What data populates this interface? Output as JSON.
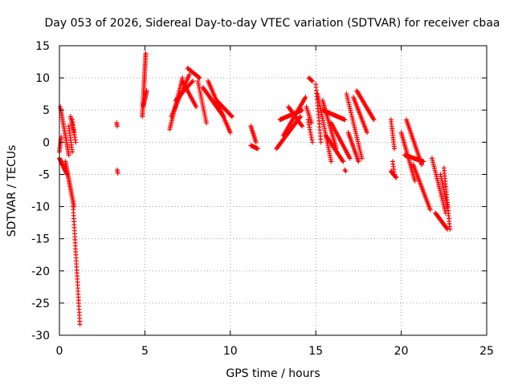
{
  "chart_data": {
    "type": "scatter",
    "title": "Day 053 of 2026, Sidereal Day-to-day VTEC variation (SDTVAR) for receiver cbaa",
    "xlabel": "GPS time / hours",
    "ylabel": "SDTVAR / TECUs",
    "xlim": [
      0,
      25
    ],
    "ylim": [
      -30,
      15
    ],
    "xticks": [
      0,
      5,
      10,
      15,
      20,
      25
    ],
    "yticks": [
      15,
      10,
      5,
      0,
      -5,
      -10,
      -15,
      -20,
      -25,
      -30
    ],
    "grid": true,
    "marker": "+",
    "series": [
      {
        "name": "SDTVAR",
        "color": "#ff0000",
        "segments": [
          {
            "x0": 0.0,
            "y0": -1.5,
            "x1": 0.1,
            "y1": 0.8,
            "n": 10
          },
          {
            "x0": 0.05,
            "y0": 5.5,
            "x1": 0.55,
            "y1": -2.0,
            "n": 28
          },
          {
            "x0": 0.0,
            "y0": -2.5,
            "x1": 0.45,
            "y1": -5.0,
            "n": 18
          },
          {
            "x0": 0.35,
            "y0": -3.0,
            "x1": 0.85,
            "y1": -10.0,
            "n": 30
          },
          {
            "x0": 0.55,
            "y0": 2.5,
            "x1": 0.75,
            "y1": -1.5,
            "n": 12
          },
          {
            "x0": 0.65,
            "y0": 4.0,
            "x1": 0.85,
            "y1": 1.5,
            "n": 10
          },
          {
            "x0": 0.75,
            "y0": 3.5,
            "x1": 0.95,
            "y1": 0.0,
            "n": 10
          },
          {
            "x0": 0.8,
            "y0": -10.0,
            "x1": 1.2,
            "y1": -28.3,
            "n": 40
          },
          {
            "x0": 3.35,
            "y0": 3.0,
            "x1": 3.38,
            "y1": 2.5,
            "n": 3
          },
          {
            "x0": 3.38,
            "y0": -4.3,
            "x1": 3.42,
            "y1": -4.8,
            "n": 3
          },
          {
            "x0": 4.85,
            "y0": 4.0,
            "x1": 5.05,
            "y1": 13.8,
            "n": 40
          },
          {
            "x0": 4.9,
            "y0": 5.5,
            "x1": 5.1,
            "y1": 8.0,
            "n": 14
          },
          {
            "x0": 6.45,
            "y0": 2.0,
            "x1": 7.2,
            "y1": 10.0,
            "n": 30
          },
          {
            "x0": 6.55,
            "y0": 4.0,
            "x1": 7.6,
            "y1": 10.5,
            "n": 28
          },
          {
            "x0": 6.8,
            "y0": 6.5,
            "x1": 7.8,
            "y1": 9.5,
            "n": 20
          },
          {
            "x0": 7.5,
            "y0": 11.5,
            "x1": 8.2,
            "y1": 10.0,
            "n": 16
          },
          {
            "x0": 7.2,
            "y0": 9.5,
            "x1": 8.0,
            "y1": 5.5,
            "n": 20
          },
          {
            "x0": 8.1,
            "y0": 9.5,
            "x1": 8.6,
            "y1": 3.0,
            "n": 22
          },
          {
            "x0": 8.4,
            "y0": 8.5,
            "x1": 9.6,
            "y1": 4.0,
            "n": 32
          },
          {
            "x0": 8.7,
            "y0": 9.5,
            "x1": 10.0,
            "y1": 1.5,
            "n": 36
          },
          {
            "x0": 9.2,
            "y0": 6.5,
            "x1": 10.1,
            "y1": 4.0,
            "n": 24
          },
          {
            "x0": 11.2,
            "y0": 2.5,
            "x1": 11.5,
            "y1": 0.0,
            "n": 12
          },
          {
            "x0": 11.2,
            "y0": -0.5,
            "x1": 11.6,
            "y1": -1.0,
            "n": 10
          },
          {
            "x0": 12.7,
            "y0": -1.0,
            "x1": 14.1,
            "y1": 4.0,
            "n": 36
          },
          {
            "x0": 12.9,
            "y0": 3.5,
            "x1": 14.2,
            "y1": 5.0,
            "n": 30
          },
          {
            "x0": 13.1,
            "y0": 1.0,
            "x1": 14.4,
            "y1": 7.0,
            "n": 32
          },
          {
            "x0": 13.4,
            "y0": 5.5,
            "x1": 14.2,
            "y1": 2.5,
            "n": 20
          },
          {
            "x0": 14.6,
            "y0": 10.0,
            "x1": 14.8,
            "y1": 9.5,
            "n": 5
          },
          {
            "x0": 14.45,
            "y0": 5.5,
            "x1": 14.75,
            "y1": 3.0,
            "n": 10
          },
          {
            "x0": 14.55,
            "y0": 3.5,
            "x1": 14.8,
            "y1": 0.0,
            "n": 10
          },
          {
            "x0": 15.0,
            "y0": 9.0,
            "x1": 15.3,
            "y1": 0.0,
            "n": 20
          },
          {
            "x0": 15.1,
            "y0": 7.5,
            "x1": 15.9,
            "y1": -3.0,
            "n": 34
          },
          {
            "x0": 15.4,
            "y0": 6.5,
            "x1": 16.2,
            "y1": -1.0,
            "n": 30
          },
          {
            "x0": 15.4,
            "y0": 5.0,
            "x1": 16.7,
            "y1": 3.5,
            "n": 30
          },
          {
            "x0": 15.6,
            "y0": 1.0,
            "x1": 16.6,
            "y1": -3.0,
            "n": 26
          },
          {
            "x0": 15.9,
            "y0": 3.0,
            "x1": 17.0,
            "y1": -2.5,
            "n": 28
          },
          {
            "x0": 16.8,
            "y0": 7.5,
            "x1": 17.7,
            "y1": -2.5,
            "n": 32
          },
          {
            "x0": 16.7,
            "y0": -4.3,
            "x1": 16.75,
            "y1": -4.5,
            "n": 2
          },
          {
            "x0": 16.9,
            "y0": 1.5,
            "x1": 17.5,
            "y1": -3.0,
            "n": 20
          },
          {
            "x0": 17.2,
            "y0": 7.0,
            "x1": 18.0,
            "y1": 1.5,
            "n": 24
          },
          {
            "x0": 17.4,
            "y0": 8.0,
            "x1": 18.4,
            "y1": 3.5,
            "n": 26
          },
          {
            "x0": 19.4,
            "y0": 3.5,
            "x1": 19.6,
            "y1": -1.0,
            "n": 14
          },
          {
            "x0": 19.4,
            "y0": -4.5,
            "x1": 19.7,
            "y1": -5.5,
            "n": 10
          },
          {
            "x0": 19.5,
            "y0": -3.0,
            "x1": 19.6,
            "y1": -5.0,
            "n": 6
          },
          {
            "x0": 20.0,
            "y0": 1.5,
            "x1": 20.8,
            "y1": -6.0,
            "n": 30
          },
          {
            "x0": 20.3,
            "y0": 3.5,
            "x1": 21.2,
            "y1": -3.5,
            "n": 30
          },
          {
            "x0": 20.7,
            "y0": -3.5,
            "x1": 21.7,
            "y1": -10.5,
            "n": 30
          },
          {
            "x0": 20.2,
            "y0": -2.0,
            "x1": 21.3,
            "y1": -3.0,
            "n": 26
          },
          {
            "x0": 21.8,
            "y0": -2.5,
            "x1": 22.6,
            "y1": -11.0,
            "n": 28
          },
          {
            "x0": 22.0,
            "y0": -11.0,
            "x1": 22.7,
            "y1": -13.5,
            "n": 20
          },
          {
            "x0": 22.3,
            "y0": -5.0,
            "x1": 22.7,
            "y1": -10.0,
            "n": 16
          },
          {
            "x0": 22.5,
            "y0": -4.0,
            "x1": 22.85,
            "y1": -13.5,
            "n": 24
          }
        ]
      }
    ]
  }
}
